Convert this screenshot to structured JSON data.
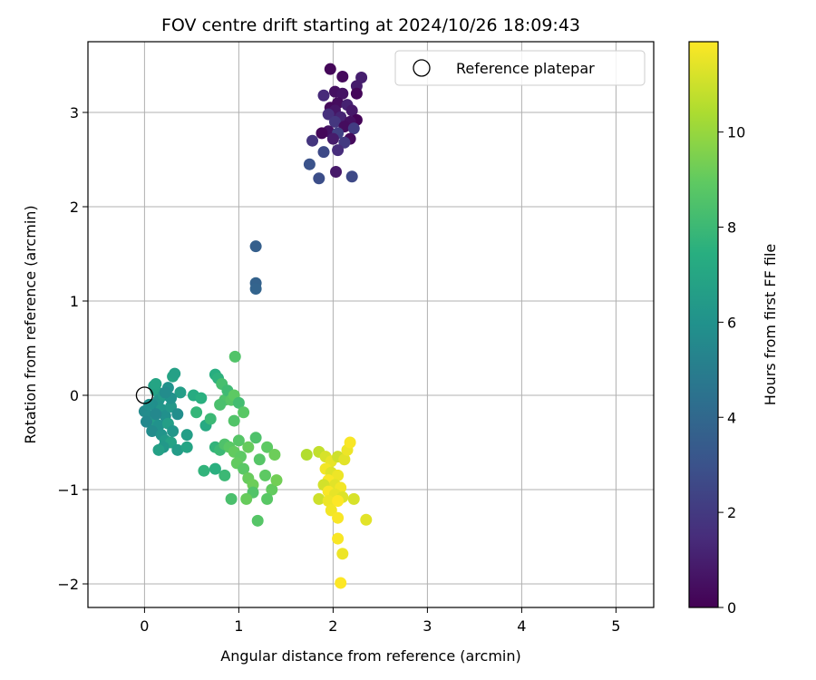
{
  "chart_data": {
    "type": "scatter",
    "title": "FOV centre drift starting at 2024/10/26 18:09:43",
    "xlabel": "Angular distance from reference (arcmin)",
    "ylabel": "Rotation from reference (arcmin)",
    "xlim": [
      -0.6,
      5.4
    ],
    "ylim": [
      -2.25,
      3.75
    ],
    "xticks": [
      0,
      1,
      2,
      3,
      4,
      5
    ],
    "yticks": [
      -2,
      -1,
      0,
      1,
      2,
      3
    ],
    "grid": true,
    "legend": {
      "position": "top-right",
      "entries": [
        "Reference platepar"
      ]
    },
    "reference_point": {
      "x": 0,
      "y": 0,
      "label": "Reference platepar"
    },
    "colorbar": {
      "label": "Hours from first FF file",
      "range": [
        0,
        11.9
      ],
      "ticks": [
        0,
        2,
        4,
        6,
        8,
        10
      ],
      "colormap": "viridis"
    },
    "points": [
      {
        "x": 1.97,
        "y": 3.46,
        "h": 0.2
      },
      {
        "x": 2.1,
        "y": 3.38,
        "h": 0.3
      },
      {
        "x": 2.3,
        "y": 3.37,
        "h": 1.0
      },
      {
        "x": 2.25,
        "y": 3.28,
        "h": 0.9
      },
      {
        "x": 2.02,
        "y": 3.22,
        "h": 0.5
      },
      {
        "x": 2.1,
        "y": 3.2,
        "h": 0.6
      },
      {
        "x": 2.25,
        "y": 3.2,
        "h": 0.2
      },
      {
        "x": 1.9,
        "y": 3.18,
        "h": 1.4
      },
      {
        "x": 2.05,
        "y": 3.1,
        "h": 0.4
      },
      {
        "x": 2.15,
        "y": 3.08,
        "h": 1.1
      },
      {
        "x": 1.97,
        "y": 3.05,
        "h": 0.3
      },
      {
        "x": 2.02,
        "y": 3.02,
        "h": 0.7
      },
      {
        "x": 2.2,
        "y": 3.02,
        "h": 0.8
      },
      {
        "x": 1.95,
        "y": 2.98,
        "h": 1.6
      },
      {
        "x": 2.08,
        "y": 2.95,
        "h": 1.2
      },
      {
        "x": 2.25,
        "y": 2.92,
        "h": 0.1
      },
      {
        "x": 2.18,
        "y": 2.9,
        "h": 0.5
      },
      {
        "x": 2.02,
        "y": 2.9,
        "h": 1.9
      },
      {
        "x": 2.12,
        "y": 2.85,
        "h": 0.4
      },
      {
        "x": 2.22,
        "y": 2.83,
        "h": 2.1
      },
      {
        "x": 1.95,
        "y": 2.8,
        "h": 0.6
      },
      {
        "x": 1.88,
        "y": 2.78,
        "h": 0.2
      },
      {
        "x": 2.05,
        "y": 2.78,
        "h": 2.3
      },
      {
        "x": 2.0,
        "y": 2.72,
        "h": 0.9
      },
      {
        "x": 2.18,
        "y": 2.72,
        "h": 0.3
      },
      {
        "x": 1.78,
        "y": 2.7,
        "h": 1.8
      },
      {
        "x": 2.12,
        "y": 2.68,
        "h": 2.0
      },
      {
        "x": 2.05,
        "y": 2.6,
        "h": 1.5
      },
      {
        "x": 1.9,
        "y": 2.58,
        "h": 2.6
      },
      {
        "x": 1.75,
        "y": 2.45,
        "h": 3.0
      },
      {
        "x": 2.03,
        "y": 2.37,
        "h": 0.8
      },
      {
        "x": 1.85,
        "y": 2.3,
        "h": 2.8
      },
      {
        "x": 2.2,
        "y": 2.32,
        "h": 2.6
      },
      {
        "x": 1.18,
        "y": 1.58,
        "h": 3.6
      },
      {
        "x": 1.18,
        "y": 1.19,
        "h": 3.7
      },
      {
        "x": 1.18,
        "y": 1.13,
        "h": 3.8
      },
      {
        "x": 0.0,
        "y": -0.17,
        "h": 5.6
      },
      {
        "x": 0.05,
        "y": -0.22,
        "h": 5.7
      },
      {
        "x": 0.1,
        "y": 0.1,
        "h": 6.6
      },
      {
        "x": 0.12,
        "y": 0.05,
        "h": 6.8
      },
      {
        "x": 0.15,
        "y": -0.05,
        "h": 6.1
      },
      {
        "x": 0.2,
        "y": 0.0,
        "h": 6.4
      },
      {
        "x": 0.25,
        "y": 0.08,
        "h": 6.0
      },
      {
        "x": 0.3,
        "y": 0.2,
        "h": 6.9
      },
      {
        "x": 0.32,
        "y": 0.23,
        "h": 6.7
      },
      {
        "x": 0.38,
        "y": 0.03,
        "h": 6.6
      },
      {
        "x": 0.08,
        "y": -0.1,
        "h": 5.8
      },
      {
        "x": 0.18,
        "y": -0.15,
        "h": 6.2
      },
      {
        "x": 0.22,
        "y": -0.22,
        "h": 5.9
      },
      {
        "x": 0.28,
        "y": -0.12,
        "h": 6.3
      },
      {
        "x": 0.1,
        "y": -0.28,
        "h": 6.5
      },
      {
        "x": 0.02,
        "y": -0.28,
        "h": 5.5
      },
      {
        "x": 0.15,
        "y": -0.32,
        "h": 6.0
      },
      {
        "x": 0.25,
        "y": -0.3,
        "h": 6.6
      },
      {
        "x": 0.3,
        "y": -0.38,
        "h": 6.2
      },
      {
        "x": 0.08,
        "y": -0.38,
        "h": 5.7
      },
      {
        "x": 0.18,
        "y": -0.42,
        "h": 6.1
      },
      {
        "x": 0.22,
        "y": -0.48,
        "h": 6.4
      },
      {
        "x": 0.28,
        "y": -0.5,
        "h": 6.8
      },
      {
        "x": 0.2,
        "y": -0.55,
        "h": 6.3
      },
      {
        "x": 0.15,
        "y": -0.58,
        "h": 6.7
      },
      {
        "x": 0.35,
        "y": -0.58,
        "h": 6.5
      },
      {
        "x": 0.45,
        "y": -0.55,
        "h": 6.9
      },
      {
        "x": 0.45,
        "y": -0.42,
        "h": 6.6
      },
      {
        "x": 0.35,
        "y": -0.2,
        "h": 5.8
      },
      {
        "x": 0.12,
        "y": -0.2,
        "h": 5.5
      },
      {
        "x": 0.05,
        "y": -0.1,
        "h": 5.9
      },
      {
        "x": 0.12,
        "y": 0.12,
        "h": 6.9
      },
      {
        "x": 0.28,
        "y": -0.03,
        "h": 6.0
      },
      {
        "x": 0.22,
        "y": 0.03,
        "h": 5.7
      },
      {
        "x": 0.52,
        "y": 0.0,
        "h": 7.3
      },
      {
        "x": 0.55,
        "y": -0.18,
        "h": 7.8
      },
      {
        "x": 0.6,
        "y": -0.03,
        "h": 7.5
      },
      {
        "x": 0.65,
        "y": -0.32,
        "h": 7.2
      },
      {
        "x": 0.7,
        "y": -0.25,
        "h": 8.0
      },
      {
        "x": 0.75,
        "y": 0.22,
        "h": 7.4
      },
      {
        "x": 0.78,
        "y": 0.18,
        "h": 7.6
      },
      {
        "x": 0.82,
        "y": 0.12,
        "h": 8.3
      },
      {
        "x": 0.85,
        "y": -0.05,
        "h": 8.5
      },
      {
        "x": 0.88,
        "y": 0.05,
        "h": 8.1
      },
      {
        "x": 0.92,
        "y": -0.05,
        "h": 8.7
      },
      {
        "x": 0.95,
        "y": 0.0,
        "h": 8.9
      },
      {
        "x": 0.95,
        "y": -0.27,
        "h": 8.6
      },
      {
        "x": 1.0,
        "y": -0.08,
        "h": 8.2
      },
      {
        "x": 1.05,
        "y": -0.18,
        "h": 8.8
      },
      {
        "x": 0.8,
        "y": -0.1,
        "h": 8.4
      },
      {
        "x": 0.96,
        "y": 0.41,
        "h": 8.6
      },
      {
        "x": 0.75,
        "y": -0.55,
        "h": 7.7
      },
      {
        "x": 0.8,
        "y": -0.58,
        "h": 8.0
      },
      {
        "x": 0.85,
        "y": -0.52,
        "h": 8.5
      },
      {
        "x": 0.9,
        "y": -0.55,
        "h": 8.8
      },
      {
        "x": 0.95,
        "y": -0.6,
        "h": 9.0
      },
      {
        "x": 1.0,
        "y": -0.48,
        "h": 8.7
      },
      {
        "x": 1.02,
        "y": -0.65,
        "h": 8.9
      },
      {
        "x": 1.1,
        "y": -0.55,
        "h": 9.1
      },
      {
        "x": 1.18,
        "y": -0.45,
        "h": 8.5
      },
      {
        "x": 1.3,
        "y": -0.55,
        "h": 8.9
      },
      {
        "x": 1.38,
        "y": -0.63,
        "h": 9.2
      },
      {
        "x": 1.22,
        "y": -0.68,
        "h": 8.7
      },
      {
        "x": 0.98,
        "y": -0.72,
        "h": 9.0
      },
      {
        "x": 1.05,
        "y": -0.78,
        "h": 8.8
      },
      {
        "x": 1.1,
        "y": -0.88,
        "h": 9.1
      },
      {
        "x": 1.15,
        "y": -0.95,
        "h": 9.2
      },
      {
        "x": 1.15,
        "y": -1.03,
        "h": 8.6
      },
      {
        "x": 1.28,
        "y": -0.85,
        "h": 8.9
      },
      {
        "x": 1.35,
        "y": -1.0,
        "h": 9.0
      },
      {
        "x": 1.4,
        "y": -0.9,
        "h": 9.3
      },
      {
        "x": 1.3,
        "y": -1.1,
        "h": 8.8
      },
      {
        "x": 1.08,
        "y": -1.1,
        "h": 9.1
      },
      {
        "x": 0.92,
        "y": -1.1,
        "h": 8.4
      },
      {
        "x": 1.2,
        "y": -1.33,
        "h": 8.7
      },
      {
        "x": 0.85,
        "y": -0.85,
        "h": 8.0
      },
      {
        "x": 0.75,
        "y": -0.78,
        "h": 7.5
      },
      {
        "x": 0.63,
        "y": -0.8,
        "h": 7.7
      },
      {
        "x": 1.72,
        "y": -0.63,
        "h": 10.5
      },
      {
        "x": 1.85,
        "y": -0.6,
        "h": 10.8
      },
      {
        "x": 1.92,
        "y": -0.65,
        "h": 11.2
      },
      {
        "x": 1.98,
        "y": -0.7,
        "h": 11.5
      },
      {
        "x": 2.05,
        "y": -0.65,
        "h": 11.0
      },
      {
        "x": 2.12,
        "y": -0.68,
        "h": 11.4
      },
      {
        "x": 2.15,
        "y": -0.58,
        "h": 11.6
      },
      {
        "x": 2.18,
        "y": -0.5,
        "h": 11.8
      },
      {
        "x": 1.92,
        "y": -0.78,
        "h": 11.7
      },
      {
        "x": 1.98,
        "y": -0.82,
        "h": 11.3
      },
      {
        "x": 2.05,
        "y": -0.85,
        "h": 11.6
      },
      {
        "x": 1.95,
        "y": -0.9,
        "h": 11.8
      },
      {
        "x": 2.02,
        "y": -0.95,
        "h": 11.4
      },
      {
        "x": 1.9,
        "y": -0.95,
        "h": 11.1
      },
      {
        "x": 2.08,
        "y": -0.98,
        "h": 11.7
      },
      {
        "x": 1.95,
        "y": -1.02,
        "h": 11.8
      },
      {
        "x": 2.02,
        "y": -1.05,
        "h": 11.5
      },
      {
        "x": 2.1,
        "y": -1.08,
        "h": 11.3
      },
      {
        "x": 1.85,
        "y": -1.1,
        "h": 11.0
      },
      {
        "x": 1.95,
        "y": -1.12,
        "h": 11.6
      },
      {
        "x": 2.05,
        "y": -1.12,
        "h": 11.9
      },
      {
        "x": 2.22,
        "y": -1.1,
        "h": 11.2
      },
      {
        "x": 1.98,
        "y": -1.22,
        "h": 11.7
      },
      {
        "x": 2.05,
        "y": -1.3,
        "h": 11.8
      },
      {
        "x": 2.35,
        "y": -1.32,
        "h": 11.4
      },
      {
        "x": 2.05,
        "y": -1.52,
        "h": 11.8
      },
      {
        "x": 2.1,
        "y": -1.68,
        "h": 11.6
      },
      {
        "x": 2.08,
        "y": -1.99,
        "h": 11.9
      }
    ]
  }
}
